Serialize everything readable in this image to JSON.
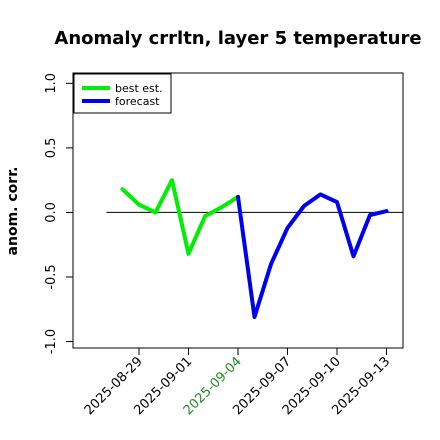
{
  "chart_data": {
    "type": "line",
    "title": "Anomaly crrltn, layer 5 temperature",
    "xlabel": "",
    "ylabel": "anom. corr.",
    "ylim": [
      -1.05,
      1.08
    ],
    "xlim": [
      "2025-08-25",
      "2025-09-14"
    ],
    "yticks": [
      -1.0,
      -0.5,
      0.0,
      0.5,
      1.0
    ],
    "ytick_labels": [
      "-1.0",
      "-0.5",
      "0.0",
      "0.5",
      "1.0"
    ],
    "xticks": [
      "2025-08-29",
      "2025-09-01",
      "2025-09-04",
      "2025-09-07",
      "2025-09-10",
      "2025-09-13"
    ],
    "xtick_labels": [
      "2025-08-29",
      "2025-09-01",
      "2025-09-04",
      "2025-09-07",
      "2025-09-10",
      "2025-09-13"
    ],
    "highlight_tick": "2025-09-04",
    "highlight_color": "#228B22",
    "reference_line": 0.0,
    "grid": false,
    "legend_position": "top-left",
    "series": [
      {
        "name": "best est.",
        "color": "#00ee00",
        "x": [
          "2025-08-28",
          "2025-08-29",
          "2025-08-30",
          "2025-08-31",
          "2025-09-01",
          "2025-09-02",
          "2025-09-03",
          "2025-09-04"
        ],
        "values": [
          0.18,
          0.06,
          0.0,
          0.25,
          -0.32,
          -0.03,
          0.04,
          0.12
        ]
      },
      {
        "name": "forecast",
        "color": "#0000ee",
        "x": [
          "2025-09-04",
          "2025-09-05",
          "2025-09-06",
          "2025-09-07",
          "2025-09-08",
          "2025-09-09",
          "2025-09-10",
          "2025-09-11",
          "2025-09-12",
          "2025-09-13"
        ],
        "values": [
          0.12,
          -0.81,
          -0.4,
          -0.12,
          0.05,
          0.14,
          0.08,
          -0.34,
          -0.02,
          0.01
        ]
      }
    ]
  }
}
